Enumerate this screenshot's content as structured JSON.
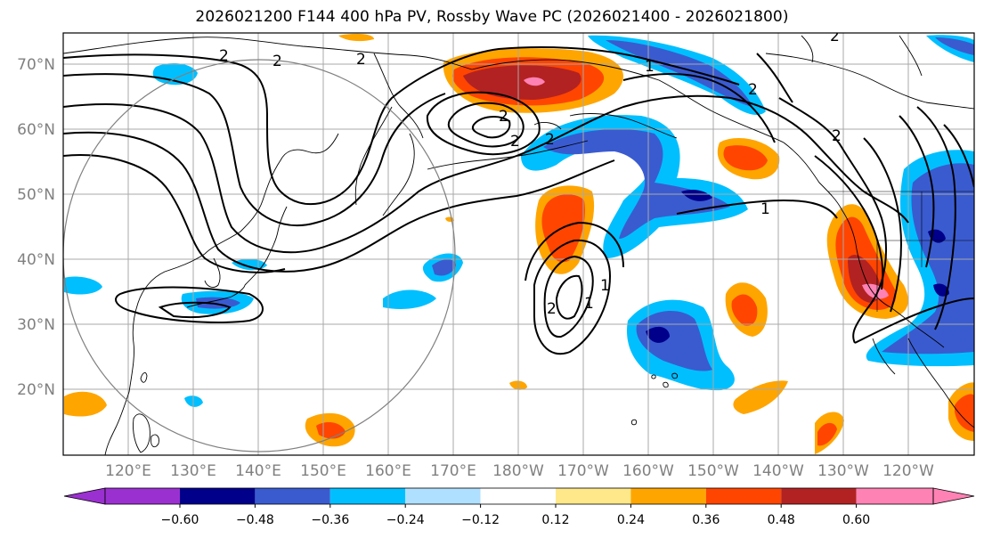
{
  "title": "2026021200 F144 400 hPa PV, Rossby Wave PC (2026021400 - 2026021800)",
  "lat_labels": [
    "70°N",
    "60°N",
    "50°N",
    "40°N",
    "30°N",
    "20°N"
  ],
  "lon_labels": [
    "120°E",
    "130°E",
    "140°E",
    "150°E",
    "160°E",
    "170°E",
    "180°W",
    "170°W",
    "160°W",
    "150°W",
    "140°W",
    "130°W",
    "120°W"
  ],
  "contour_labels": [
    "2",
    "2",
    "2",
    "2",
    "2",
    "2",
    "1",
    "1",
    "1",
    "2",
    "2",
    "2",
    "2"
  ],
  "colorbar": {
    "ticks": [
      "−0.60",
      "−0.48",
      "−0.36",
      "−0.24",
      "−0.12",
      "0.12",
      "0.24",
      "0.36",
      "0.48",
      "0.60"
    ],
    "colors": [
      "#9b30d0",
      "#00008b",
      "#3a5bd0",
      "#00bfff",
      "#b0e0ff",
      "#ffffff",
      "#ffe88a",
      "#ffa500",
      "#ff4500",
      "#b22222",
      "#ff82b4"
    ]
  },
  "colors": {
    "grid": "#a8a8a8",
    "contour": "#000000",
    "coast": "#000000",
    "circle": "#808080"
  }
}
